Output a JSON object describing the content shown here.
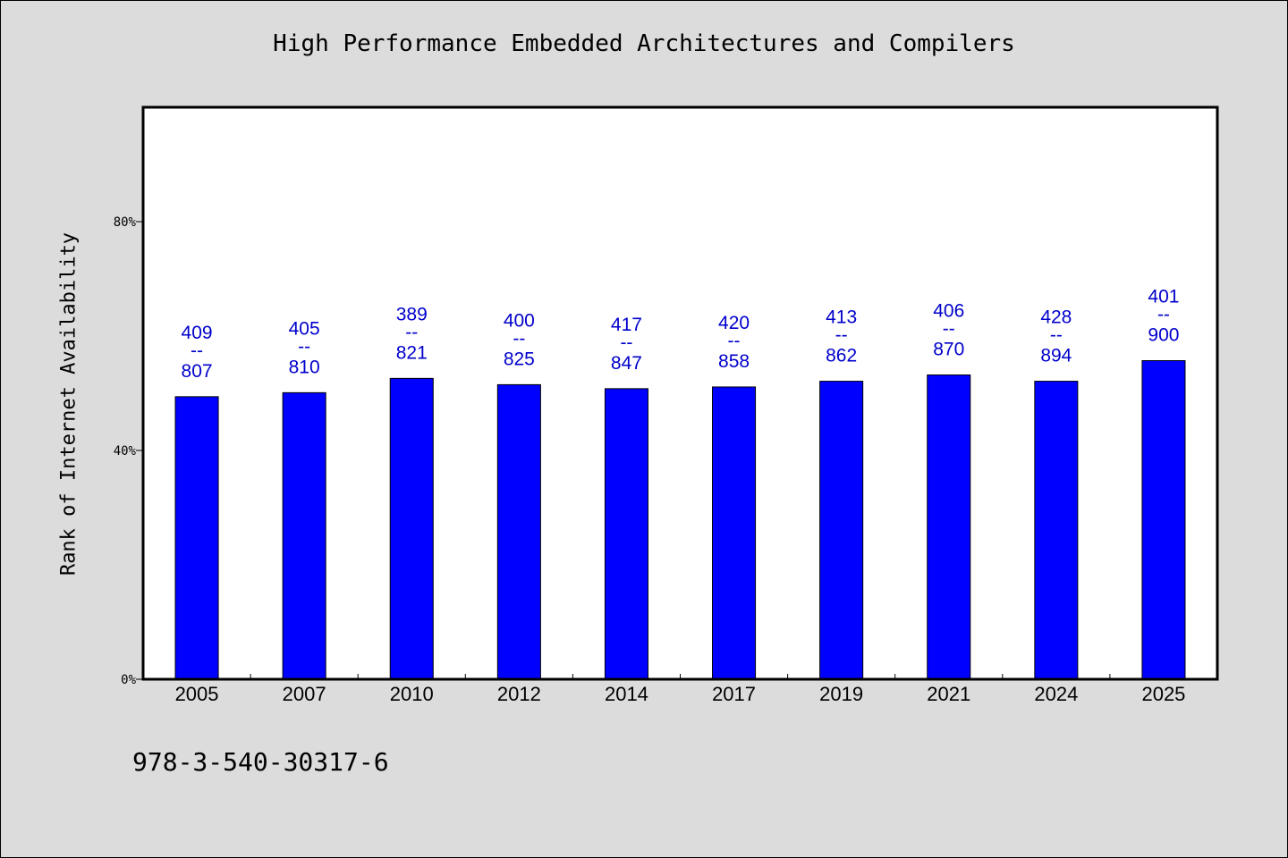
{
  "chart_data": {
    "type": "bar",
    "title": "High Performance Embedded Architectures and Compilers",
    "xlabel": "",
    "ylabel": "Rank of Internet Availability",
    "categories": [
      "2005",
      "2007",
      "2010",
      "2012",
      "2014",
      "2017",
      "2019",
      "2021",
      "2024",
      "2025"
    ],
    "values": [
      49.4,
      50.1,
      52.6,
      51.5,
      50.8,
      51.1,
      52.1,
      53.2,
      52.1,
      55.7
    ],
    "bar_labels": [
      {
        "top": "409",
        "sep": "--",
        "bottom": "807"
      },
      {
        "top": "405",
        "sep": "--",
        "bottom": "810"
      },
      {
        "top": "389",
        "sep": "--",
        "bottom": "821"
      },
      {
        "top": "400",
        "sep": "--",
        "bottom": "825"
      },
      {
        "top": "417",
        "sep": "--",
        "bottom": "847"
      },
      {
        "top": "420",
        "sep": "--",
        "bottom": "858"
      },
      {
        "top": "413",
        "sep": "--",
        "bottom": "862"
      },
      {
        "top": "406",
        "sep": "--",
        "bottom": "870"
      },
      {
        "top": "428",
        "sep": "--",
        "bottom": "894"
      },
      {
        "top": "401",
        "sep": "--",
        "bottom": "900"
      }
    ],
    "yticks": [
      {
        "value": 0,
        "label": "0%"
      },
      {
        "value": 40,
        "label": "40%"
      },
      {
        "value": 80,
        "label": "80%"
      }
    ],
    "ylim": [
      0,
      100
    ],
    "grid": false,
    "colors": {
      "bar": "#0000ff",
      "label": "#0000cc",
      "background": "#dcdcdc",
      "plot_area": "#ffffff"
    }
  },
  "footer": {
    "id_text": "978-3-540-30317-6"
  }
}
